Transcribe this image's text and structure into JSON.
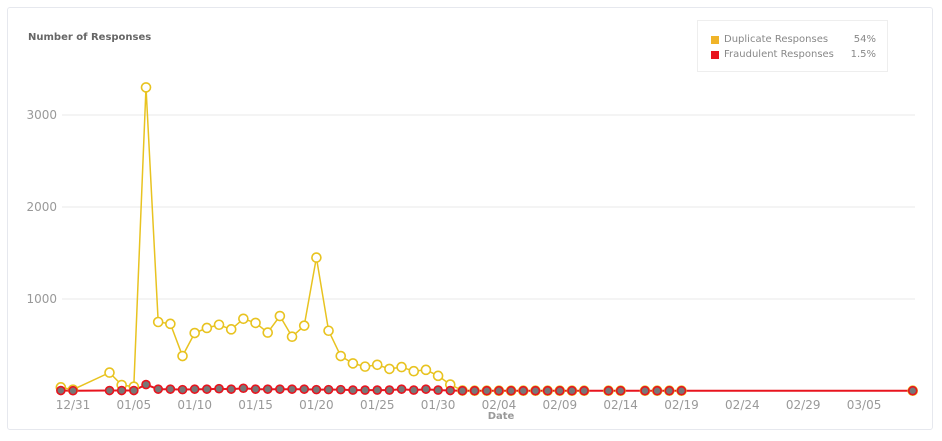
{
  "chart_data": {
    "type": "line",
    "title": "Number of Responses",
    "xlabel": "Date",
    "ylabel": "",
    "ylim": [
      0,
      3500
    ],
    "y_ticks": [
      "1000",
      "2000",
      "3000"
    ],
    "x_ticks": [
      "12/31",
      "01/05",
      "01/10",
      "01/15",
      "01/20",
      "01/25",
      "01/30",
      "02/04",
      "02/09",
      "02/14",
      "02/19",
      "02/24",
      "02/29",
      "03/05"
    ],
    "grid": true,
    "legend_position": "top-right",
    "x": [
      "12/30",
      "12/31",
      "01/03",
      "01/04",
      "01/05",
      "01/06",
      "01/07",
      "01/08",
      "01/09",
      "01/10",
      "01/11",
      "01/12",
      "01/13",
      "01/14",
      "01/15",
      "01/16",
      "01/17",
      "01/18",
      "01/19",
      "01/20",
      "01/21",
      "01/22",
      "01/23",
      "01/24",
      "01/25",
      "01/26",
      "01/27",
      "01/28",
      "01/29",
      "01/30",
      "01/31",
      "02/01",
      "02/02",
      "02/03",
      "02/04",
      "02/05",
      "02/06",
      "02/07",
      "02/08",
      "02/09",
      "02/10",
      "02/11",
      "02/13",
      "02/14",
      "02/16",
      "02/17",
      "02/18",
      "02/19",
      "03/09"
    ],
    "series": [
      {
        "name": "Duplicate Responses",
        "share": "54%",
        "color": "#e8c320",
        "swatch": "#f0b429",
        "values": [
          40,
          15,
          200,
          65,
          47,
          3300,
          750,
          730,
          380,
          630,
          685,
          720,
          670,
          785,
          740,
          635,
          815,
          590,
          710,
          1450,
          655,
          380,
          300,
          265,
          285,
          240,
          260,
          215,
          230,
          165,
          70,
          5,
          3,
          3,
          3,
          3,
          3,
          3,
          3,
          3,
          3,
          3,
          3,
          3,
          3,
          3,
          3,
          3,
          3
        ]
      },
      {
        "name": "Fraudulent Responses",
        "share": "1.5%",
        "color": "#e8141e",
        "swatch": "#e8141e",
        "values": [
          5,
          3,
          5,
          5,
          5,
          70,
          20,
          20,
          15,
          20,
          20,
          25,
          20,
          30,
          20,
          20,
          20,
          20,
          20,
          15,
          15,
          15,
          10,
          10,
          10,
          10,
          20,
          10,
          20,
          10,
          5,
          3,
          3,
          3,
          3,
          3,
          3,
          3,
          3,
          3,
          3,
          3,
          3,
          3,
          3,
          3,
          3,
          3,
          3
        ]
      }
    ]
  }
}
